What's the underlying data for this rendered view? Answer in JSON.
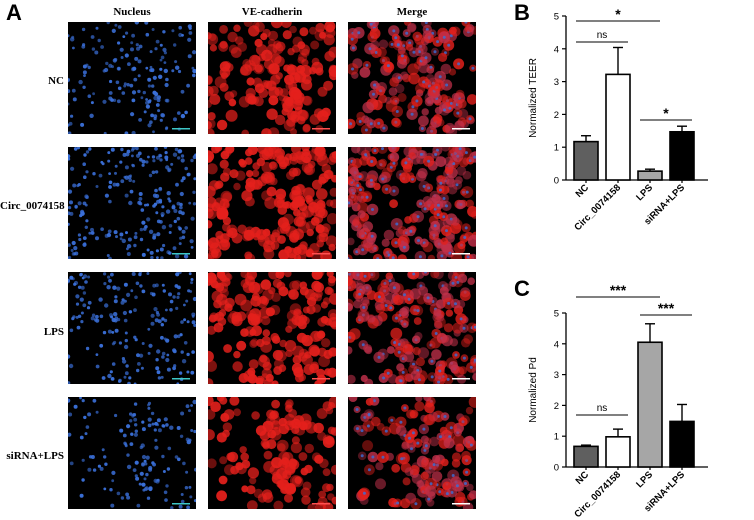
{
  "panel_a": {
    "letter": "A",
    "columns": [
      "Nucleus",
      "VE-cadherin",
      "Merge"
    ],
    "rows": [
      "NC",
      "Circ_0074158",
      "LPS",
      "siRNA+LPS"
    ],
    "colors": {
      "nucleus": "#3a6fd8",
      "cadherin": "#e4201c",
      "merge": "#c0304a",
      "background": "#000000"
    }
  },
  "panel_b": {
    "letter": "B"
  },
  "panel_c": {
    "letter": "C"
  },
  "chart_data": [
    {
      "type": "bar",
      "panel": "B",
      "categories": [
        "NC",
        "Circ_0074158",
        "LPS",
        "siRNA+LPS"
      ],
      "values": [
        1.17,
        3.22,
        0.27,
        1.47
      ],
      "errors": [
        0.18,
        0.82,
        0.06,
        0.17
      ],
      "bar_colors": [
        "#5f5f5f",
        "#ffffff",
        "#a6a6a6",
        "#000000"
      ],
      "ylabel": "Normalized TEER",
      "ylim": [
        0,
        5
      ],
      "yticks": [
        "0",
        "1",
        "2",
        "3",
        "4",
        "5"
      ],
      "significance": [
        {
          "from": 0,
          "to": 1,
          "label": "ns"
        },
        {
          "from": 0,
          "to": 2,
          "label": "*"
        },
        {
          "from": 2,
          "to": 3,
          "label": "*"
        }
      ]
    },
    {
      "type": "bar",
      "panel": "C",
      "categories": [
        "NC",
        "Circ_0074158",
        "LPS",
        "siRNA+LPS"
      ],
      "values": [
        0.67,
        0.98,
        4.05,
        1.48
      ],
      "errors": [
        0.04,
        0.25,
        0.6,
        0.55
      ],
      "bar_colors": [
        "#5f5f5f",
        "#ffffff",
        "#a6a6a6",
        "#000000"
      ],
      "ylabel": "Normalized  Pd",
      "ylim": [
        0,
        5
      ],
      "yticks": [
        "0",
        "1",
        "2",
        "3",
        "4",
        "5"
      ],
      "significance": [
        {
          "from": 0,
          "to": 1,
          "label": "ns"
        },
        {
          "from": 0,
          "to": 2,
          "label": "***"
        },
        {
          "from": 2,
          "to": 3,
          "label": "***"
        }
      ]
    }
  ]
}
